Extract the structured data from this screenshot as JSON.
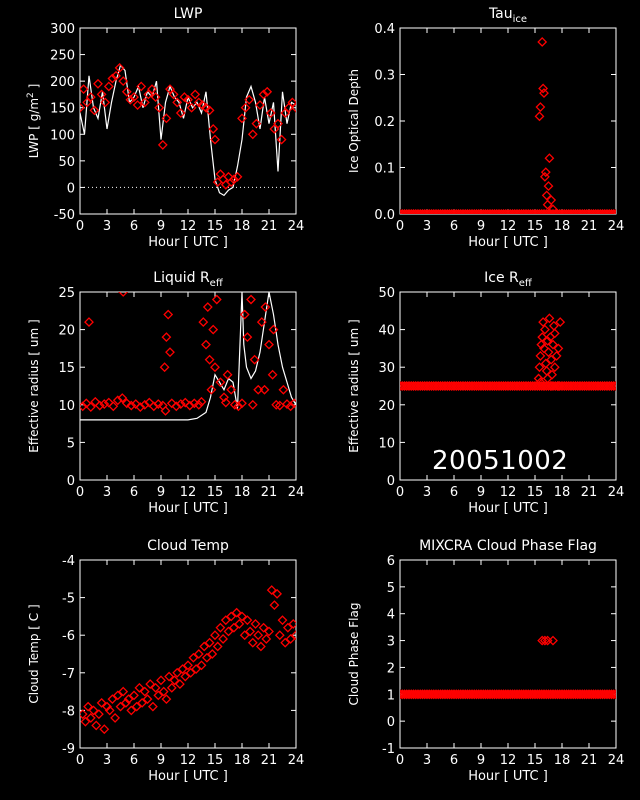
{
  "date_stamp": "20051002",
  "colors": {
    "background": "#000000",
    "axes": "#ffffff",
    "markers": "#ff0000",
    "line": "#ffffff"
  },
  "chart_data": [
    {
      "id": "lwp",
      "type": "scatter",
      "title": "LWP",
      "title_sub": "",
      "xlabel": "Hour [ UTC ]",
      "ylabel_parts": [
        "LWP [ g/m",
        "2",
        " ]"
      ],
      "xlim": [
        0,
        24
      ],
      "ylim": [
        -50,
        300
      ],
      "xticks": [
        0,
        3,
        6,
        9,
        12,
        15,
        18,
        21,
        24
      ],
      "yticks": [
        -50,
        0,
        50,
        100,
        150,
        200,
        250,
        300
      ],
      "reference_line": {
        "y": 0,
        "style": "dotted"
      },
      "line_series": {
        "color": "#ffffff",
        "x": [
          0,
          0.5,
          1,
          1.5,
          2,
          2.5,
          3,
          3.5,
          4,
          4.5,
          5,
          5.5,
          6,
          6.5,
          7,
          7.5,
          8,
          8.5,
          9,
          9.5,
          10,
          10.5,
          11,
          11.5,
          12,
          12.5,
          13,
          13.5,
          14,
          14.5,
          15,
          15.5,
          16,
          16.5,
          17,
          17.5,
          18,
          18.5,
          19,
          19.5,
          20,
          20.5,
          21,
          21.5,
          22,
          22.5,
          23,
          23.5,
          24
        ],
        "y": [
          140,
          100,
          210,
          150,
          130,
          180,
          110,
          160,
          200,
          230,
          220,
          160,
          170,
          190,
          150,
          180,
          170,
          200,
          90,
          160,
          190,
          170,
          160,
          130,
          170,
          150,
          160,
          140,
          180,
          90,
          15,
          -10,
          -15,
          -5,
          0,
          40,
          90,
          170,
          190,
          160,
          110,
          170,
          120,
          160,
          30,
          180,
          120,
          160,
          155
        ]
      },
      "marker_series": {
        "color": "#ff0000",
        "marker": "diamond",
        "x": [
          0,
          0.4,
          0.8,
          1.2,
          1.6,
          2,
          2.4,
          2.8,
          3.2,
          3.6,
          4,
          4.4,
          4.8,
          5.2,
          5.6,
          6,
          6.4,
          6.8,
          7.2,
          7.6,
          8,
          8.4,
          8.8,
          9.2,
          9.6,
          10,
          10.4,
          10.8,
          11.2,
          11.6,
          12,
          12.4,
          12.8,
          13.2,
          13.6,
          14,
          14.4,
          14.8,
          15,
          15.3,
          15.6,
          15.9,
          16.2,
          16.5,
          16.8,
          17.1,
          17.5,
          18,
          18.4,
          18.8,
          19.2,
          19.6,
          20,
          20.4,
          20.8,
          21.2,
          21.6,
          22,
          22.4,
          22.8,
          23.2,
          23.6,
          24
        ],
        "y": [
          150,
          185,
          160,
          170,
          145,
          195,
          175,
          160,
          190,
          205,
          210,
          225,
          200,
          180,
          165,
          170,
          155,
          190,
          160,
          175,
          185,
          170,
          150,
          80,
          130,
          185,
          175,
          160,
          140,
          170,
          165,
          150,
          175,
          160,
          155,
          150,
          145,
          110,
          90,
          10,
          25,
          15,
          5,
          20,
          10,
          15,
          20,
          130,
          150,
          165,
          100,
          120,
          155,
          175,
          180,
          140,
          110,
          120,
          90,
          140,
          150,
          160,
          150
        ]
      }
    },
    {
      "id": "tau_ice",
      "type": "scatter",
      "title": "Tau",
      "title_sub": "ice",
      "xlabel": "Hour [ UTC ]",
      "ylabel_parts": [
        "Ice Optical Depth"
      ],
      "xlim": [
        0,
        24
      ],
      "ylim": [
        0,
        0.4
      ],
      "xticks": [
        0,
        3,
        6,
        9,
        12,
        15,
        18,
        21,
        24
      ],
      "yticks": [
        0.0,
        0.1,
        0.2,
        0.3,
        0.4
      ],
      "ytick_decimals": 1,
      "baseline_band": {
        "y": 0.0
      },
      "marker_series": {
        "color": "#ff0000",
        "marker": "diamond",
        "x": [
          15.5,
          15.6,
          15.8,
          15.9,
          16.0,
          16.1,
          16.2,
          16.3,
          16.4,
          16.5,
          16.6,
          16.8,
          17.0
        ],
        "y": [
          0.21,
          0.23,
          0.37,
          0.27,
          0.26,
          0.08,
          0.09,
          0.04,
          0.02,
          0.06,
          0.12,
          0.03,
          0.01
        ]
      }
    },
    {
      "id": "liquid_reff",
      "type": "scatter",
      "title": "Liquid R",
      "title_sub": "eff",
      "xlabel": "Hour [ UTC ]",
      "ylabel_parts": [
        "Effective radius [ um ]"
      ],
      "xlim": [
        0,
        24
      ],
      "ylim": [
        0,
        25
      ],
      "xticks": [
        0,
        3,
        6,
        9,
        12,
        15,
        18,
        21,
        24
      ],
      "yticks": [
        0,
        5,
        10,
        15,
        20,
        25
      ],
      "line_series": {
        "color": "#ffffff",
        "x": [
          0,
          12,
          13,
          14,
          14.5,
          15,
          15.5,
          16,
          16.5,
          17,
          17.5,
          18,
          18.2,
          18.5,
          19,
          19.5,
          20,
          20.5,
          21,
          21.5,
          22,
          22.5,
          23,
          23.5,
          24
        ],
        "y": [
          8,
          8,
          8.2,
          9,
          11,
          14,
          13,
          12,
          13.5,
          13,
          9.5,
          25,
          18,
          15,
          13.5,
          14.5,
          17,
          21,
          25,
          22,
          18,
          15,
          13,
          11,
          10
        ]
      },
      "marker_series": {
        "color": "#ff0000",
        "marker": "diamond",
        "x": [
          0.3,
          0.7,
          1.2,
          1.7,
          2.2,
          2.7,
          3.2,
          3.7,
          4.2,
          4.7,
          5.2,
          5.7,
          6.2,
          6.7,
          7.2,
          7.7,
          8.2,
          8.7,
          9.2,
          9.4,
          9.6,
          9.8,
          10.0,
          10.2,
          10.7,
          11.2,
          11.7,
          12.2,
          12.7,
          13.2,
          13.7,
          14.0,
          14.2,
          14.4,
          14.6,
          14.8,
          15.2,
          15.6,
          16.0,
          16.4,
          16.8,
          17.2,
          17.6,
          18.0,
          18.3,
          18.6,
          19.0,
          19.4,
          19.8,
          20.2,
          20.6,
          21.0,
          21.4,
          21.8,
          22.2,
          22.6,
          23.0,
          23.4,
          23.8,
          1.0,
          4.8,
          9.5,
          13.5,
          15.0,
          16.2,
          19.2,
          20.5,
          21.5
        ],
        "y": [
          9.8,
          10.2,
          9.7,
          10.4,
          9.9,
          10.1,
          10.3,
          9.8,
          10.6,
          10.9,
          10.2,
          9.9,
          10.1,
          9.7,
          10.0,
          10.3,
          9.8,
          10.1,
          9.9,
          15,
          19,
          22,
          17,
          10.2,
          9.8,
          10.1,
          10.3,
          9.9,
          10.2,
          10.0,
          21,
          18,
          23,
          16,
          12,
          20,
          24,
          13,
          11,
          14,
          12,
          10,
          9.8,
          10.2,
          22,
          19,
          24,
          16,
          12,
          21,
          23,
          18,
          14,
          10,
          9.9,
          12,
          10.1,
          9.8,
          10.2,
          21,
          25,
          9.2,
          10.4,
          15,
          10.3,
          10,
          12,
          20
        ]
      }
    },
    {
      "id": "ice_reff",
      "type": "scatter",
      "title": "Ice R",
      "title_sub": "eff",
      "xlabel": "Hour [ UTC ]",
      "ylabel_parts": [
        "Effective radius [ um ]"
      ],
      "xlim": [
        0,
        24
      ],
      "ylim": [
        0,
        50
      ],
      "xticks": [
        0,
        3,
        6,
        9,
        12,
        15,
        18,
        21,
        24
      ],
      "yticks": [
        0,
        10,
        20,
        30,
        40,
        50
      ],
      "baseline_band": {
        "y": 25
      },
      "marker_series": {
        "color": "#ff0000",
        "marker": "diamond",
        "x": [
          15.4,
          15.5,
          15.6,
          15.7,
          15.8,
          15.9,
          16.0,
          16.1,
          16.2,
          16.3,
          16.4,
          16.5,
          16.6,
          16.7,
          16.8,
          16.9,
          17.0,
          17.1,
          17.2,
          17.4,
          17.6,
          17.8,
          15.6,
          16.0,
          16.4,
          16.8,
          17.2,
          17.6
        ],
        "y": [
          27,
          30,
          33,
          36,
          38,
          42,
          35,
          40,
          31,
          29,
          37,
          34,
          43,
          38,
          32,
          28,
          36,
          41,
          39,
          33,
          35,
          42,
          26,
          25,
          27,
          25,
          30,
          25
        ]
      }
    },
    {
      "id": "cloud_temp",
      "type": "scatter",
      "title": "Cloud Temp",
      "title_sub": "",
      "xlabel": "Hour [ UTC ]",
      "ylabel_parts": [
        "Cloud Temp [ C ]"
      ],
      "xlim": [
        0,
        24
      ],
      "ylim": [
        -9,
        -4
      ],
      "xticks": [
        0,
        3,
        6,
        9,
        12,
        15,
        18,
        21,
        24
      ],
      "yticks": [
        -9,
        -8,
        -7,
        -6,
        -5,
        -4
      ],
      "marker_series": {
        "color": "#ff0000",
        "marker": "diamond",
        "x": [
          0.3,
          0.6,
          0.9,
          1.2,
          1.5,
          1.8,
          2.1,
          2.4,
          2.7,
          3.0,
          3.3,
          3.6,
          3.9,
          4.2,
          4.5,
          4.8,
          5.1,
          5.4,
          5.7,
          6.0,
          6.3,
          6.6,
          6.9,
          7.2,
          7.5,
          7.8,
          8.1,
          8.4,
          8.7,
          9.0,
          9.3,
          9.6,
          9.9,
          10.2,
          10.5,
          10.8,
          11.1,
          11.4,
          11.7,
          12.0,
          12.3,
          12.6,
          12.9,
          13.2,
          13.5,
          13.8,
          14.1,
          14.4,
          14.7,
          15.0,
          15.3,
          15.6,
          15.9,
          16.2,
          16.5,
          16.8,
          17.1,
          17.4,
          17.7,
          18.0,
          18.3,
          18.6,
          18.9,
          19.2,
          19.5,
          19.8,
          20.1,
          20.4,
          20.7,
          21.0,
          21.3,
          21.6,
          21.9,
          22.2,
          22.5,
          22.8,
          23.1,
          23.4,
          23.7,
          24.0
        ],
        "y": [
          -8.1,
          -8.3,
          -7.9,
          -8.2,
          -8.0,
          -8.4,
          -8.1,
          -7.8,
          -8.5,
          -7.9,
          -8.0,
          -7.7,
          -8.2,
          -7.6,
          -7.9,
          -7.5,
          -7.8,
          -7.7,
          -8.0,
          -7.6,
          -7.9,
          -7.4,
          -7.8,
          -7.5,
          -7.7,
          -7.3,
          -7.9,
          -7.4,
          -7.6,
          -7.2,
          -7.5,
          -7.7,
          -7.1,
          -7.4,
          -7.2,
          -7.0,
          -7.3,
          -6.9,
          -7.1,
          -6.8,
          -7.0,
          -6.6,
          -6.9,
          -6.5,
          -6.8,
          -6.3,
          -6.6,
          -6.2,
          -6.5,
          -6.0,
          -6.3,
          -5.8,
          -6.1,
          -5.6,
          -5.9,
          -5.5,
          -5.8,
          -5.4,
          -5.7,
          -5.5,
          -6.0,
          -5.6,
          -5.9,
          -6.2,
          -5.7,
          -6.0,
          -6.3,
          -5.8,
          -6.1,
          -5.9,
          -4.8,
          -5.2,
          -4.9,
          -6.0,
          -5.6,
          -6.2,
          -5.8,
          -6.1,
          -5.7,
          -6.0
        ]
      }
    },
    {
      "id": "phase_flag",
      "type": "scatter",
      "title": "MIXCRA Cloud Phase Flag",
      "title_sub": "",
      "xlabel": "Hour [ UTC ]",
      "ylabel_parts": [
        "Cloud Phase Flag"
      ],
      "xlim": [
        0,
        24
      ],
      "ylim": [
        -1,
        6
      ],
      "xticks": [
        0,
        3,
        6,
        9,
        12,
        15,
        18,
        21,
        24
      ],
      "yticks": [
        -1,
        0,
        1,
        2,
        3,
        4,
        5,
        6
      ],
      "baseline_band": {
        "y": 1
      },
      "marker_series": {
        "color": "#ff0000",
        "marker": "diamond",
        "x": [
          15.8,
          16.1,
          16.4,
          17.0
        ],
        "y": [
          3,
          3,
          3,
          3
        ]
      }
    }
  ]
}
